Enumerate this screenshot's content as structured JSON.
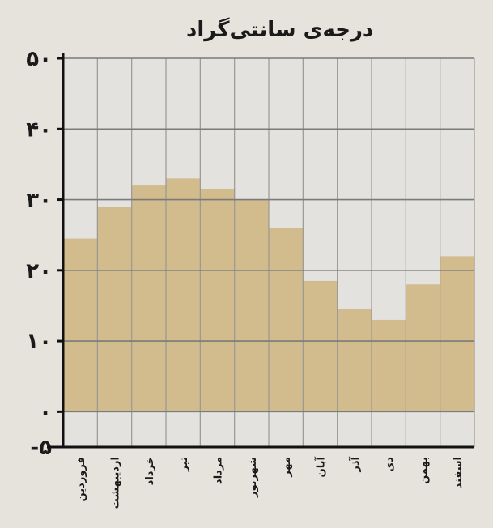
{
  "chart_data": {
    "type": "bar",
    "title": "درجه‌ی سانتی‌گراد",
    "xlabel": "",
    "ylabel": "درجه‌ی سانتی‌گراد",
    "ylim": [
      -5,
      50
    ],
    "baseline": 0,
    "yticks": [
      {
        "value": 50,
        "label": "۵۰"
      },
      {
        "value": 40,
        "label": "۴۰"
      },
      {
        "value": 30,
        "label": "۳۰"
      },
      {
        "value": 20,
        "label": "۲۰"
      },
      {
        "value": 10,
        "label": "۱۰"
      },
      {
        "value": 0,
        "label": "۰"
      },
      {
        "value": -5,
        "label": "-۵"
      }
    ],
    "categories": [
      "فروردین",
      "اردیبهشت",
      "خرداد",
      "تیر",
      "مرداد",
      "شهریور",
      "مهر",
      "آبان",
      "آذر",
      "دی",
      "بهمن",
      "اسفند"
    ],
    "values": [
      24.5,
      29,
      32,
      33,
      31.5,
      30,
      26,
      18.5,
      14.5,
      13,
      18,
      22
    ],
    "grid": true,
    "colors": {
      "bar": "#d2bb8c",
      "background": "#e6e3dc",
      "grid": "#7a7a7a",
      "axis": "#111111"
    }
  }
}
